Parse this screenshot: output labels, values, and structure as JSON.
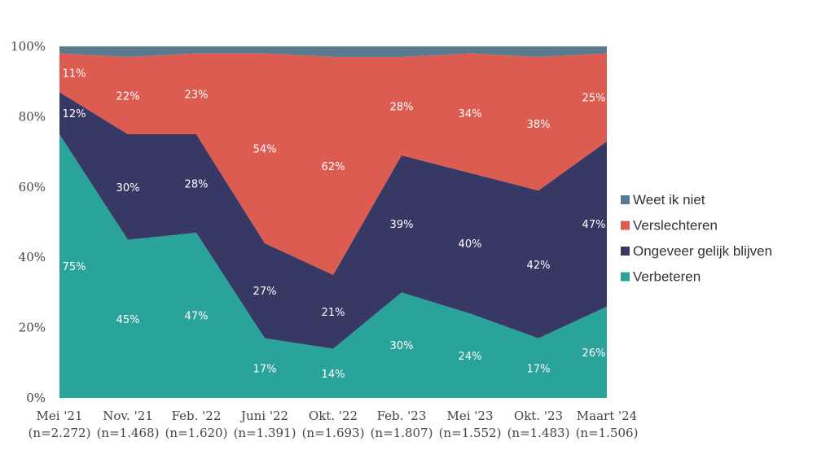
{
  "chart_data": {
    "type": "area",
    "stacked": true,
    "categories": [
      [
        "Mei '21",
        "(n=2.272)"
      ],
      [
        "Nov. '21",
        "(n=1.468)"
      ],
      [
        "Feb. '22",
        "(n=1.620)"
      ],
      [
        "Juni '22",
        "(n=1.391)"
      ],
      [
        "Okt. '22",
        "(n=1.693)"
      ],
      [
        "Feb. '23",
        "(n=1.807)"
      ],
      [
        "Mei '23",
        "(n=1.552)"
      ],
      [
        "Okt. '23",
        "(n=1.483)"
      ],
      [
        "Maart '24",
        "(n=1.506)"
      ]
    ],
    "series": [
      {
        "name": "Verbeteren",
        "color": "#2aa39a",
        "values": [
          75,
          45,
          47,
          17,
          14,
          30,
          24,
          17,
          26
        ],
        "labels": [
          "75%",
          "45%",
          "47%",
          "17%",
          "14%",
          "30%",
          "24%",
          "17%",
          "26%"
        ]
      },
      {
        "name": "Ongeveer gelijk blijven",
        "color": "#373863",
        "values": [
          12,
          30,
          28,
          27,
          21,
          39,
          40,
          42,
          47
        ],
        "labels": [
          "12%",
          "30%",
          "28%",
          "27%",
          "21%",
          "39%",
          "40%",
          "42%",
          "47%"
        ]
      },
      {
        "name": "Verslechteren",
        "color": "#dd5c52",
        "values": [
          11,
          22,
          23,
          54,
          62,
          28,
          34,
          38,
          25
        ],
        "labels": [
          "11%",
          "22%",
          "23%",
          "54%",
          "62%",
          "28%",
          "34%",
          "38%",
          "25%"
        ]
      },
      {
        "name": "Weet ik niet",
        "color": "#5a7a90",
        "values": [
          2,
          3,
          2,
          2,
          3,
          3,
          2,
          3,
          2
        ]
      }
    ],
    "yticks": [
      "0%",
      "20%",
      "40%",
      "60%",
      "80%",
      "100%"
    ],
    "ylim": [
      0,
      100
    ],
    "legend_order": [
      "Weet ik niet",
      "Verslechteren",
      "Ongeveer gelijk blijven",
      "Verbeteren"
    ],
    "legend_position": "right",
    "grid": false
  }
}
